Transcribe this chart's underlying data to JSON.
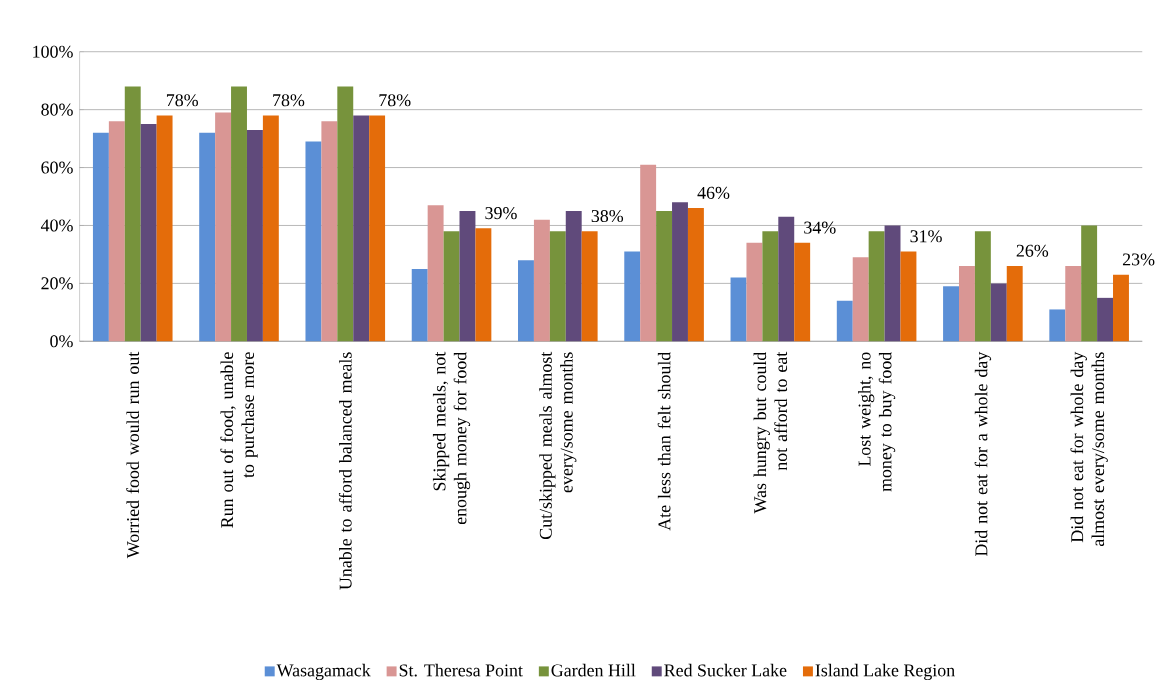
{
  "chart_data": {
    "type": "bar",
    "categories": [
      "Worried food would run out",
      "Run out of food, unable to purchase more",
      "Unable to afford balanced meals",
      "Skipped meals, not enough money for food",
      "Cut/skipped meals almost every/some months",
      "Ate less than felt should",
      "Was hungry but could not afford to eat",
      "Lost weight, no money to buy food",
      "Did not eat for a whole day",
      "Did not eat for whole day almost every/some months"
    ],
    "series": [
      {
        "name": "Wasagamack",
        "color": "#5b8fd6",
        "values": [
          72,
          72,
          69,
          25,
          28,
          31,
          22,
          14,
          19,
          11
        ]
      },
      {
        "name": "St. Theresa Point",
        "color": "#d99694",
        "values": [
          76,
          79,
          76,
          47,
          42,
          61,
          34,
          29,
          26,
          26
        ]
      },
      {
        "name": "Garden Hill",
        "color": "#77933c",
        "values": [
          88,
          88,
          88,
          38,
          38,
          45,
          38,
          38,
          38,
          40
        ]
      },
      {
        "name": "Red Sucker Lake",
        "color": "#604a7b",
        "values": [
          75,
          73,
          78,
          45,
          45,
          48,
          43,
          40,
          20,
          15
        ]
      },
      {
        "name": "Island Lake Region",
        "color": "#e46c0a",
        "values": [
          78,
          78,
          78,
          39,
          38,
          46,
          34,
          31,
          26,
          23
        ],
        "value_labels": [
          "78%",
          "78%",
          "78%",
          "39%",
          "38%",
          "46%",
          "34%",
          "31%",
          "26%",
          "23%"
        ]
      }
    ],
    "ylim": [
      0,
      100
    ],
    "yticks": [
      {
        "value": 0,
        "label": "0%"
      },
      {
        "value": 20,
        "label": "20%"
      },
      {
        "value": 40,
        "label": "40%"
      },
      {
        "value": 60,
        "label": "60%"
      },
      {
        "value": 80,
        "label": "80%"
      },
      {
        "value": 100,
        "label": "100%"
      }
    ],
    "grid": "y",
    "legend": "bottom"
  }
}
